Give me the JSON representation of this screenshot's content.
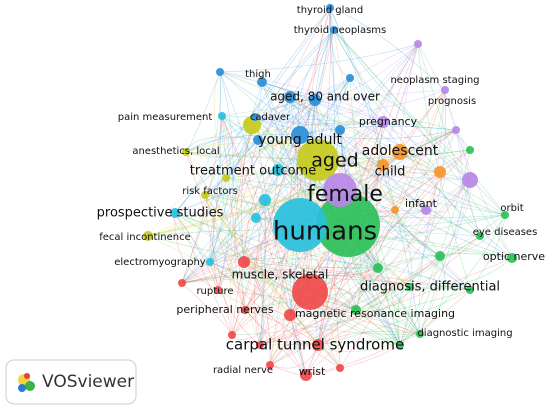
{
  "logo": "VOSviewer",
  "nodes": [
    {
      "label": "thyroid gland"
    },
    {
      "label": "thyroid neoplasms"
    },
    {
      "label": "thigh"
    },
    {
      "label": "neoplasm staging"
    },
    {
      "label": "aged, 80 and over"
    },
    {
      "label": "prognosis"
    },
    {
      "label": "pain measurement"
    },
    {
      "label": "cadaver"
    },
    {
      "label": "pregnancy"
    },
    {
      "label": "young adult"
    },
    {
      "label": "anesthetics, local"
    },
    {
      "label": "aged"
    },
    {
      "label": "adolescent"
    },
    {
      "label": "treatment outcome"
    },
    {
      "label": "child"
    },
    {
      "label": "female"
    },
    {
      "label": "risk factors"
    },
    {
      "label": "infant"
    },
    {
      "label": "orbit"
    },
    {
      "label": "prospective studies"
    },
    {
      "label": "humans"
    },
    {
      "label": "eye diseases"
    },
    {
      "label": "fecal incontinence"
    },
    {
      "label": "optic nerve"
    },
    {
      "label": "electromyography"
    },
    {
      "label": "muscle, skeletal"
    },
    {
      "label": "diagnosis, differential"
    },
    {
      "label": "rupture"
    },
    {
      "label": "peripheral nerves"
    },
    {
      "label": "magnetic resonance imaging"
    },
    {
      "label": "diagnostic imaging"
    },
    {
      "label": "carpal tunnel syndrome"
    },
    {
      "label": "radial nerve"
    },
    {
      "label": "wrist"
    }
  ]
}
